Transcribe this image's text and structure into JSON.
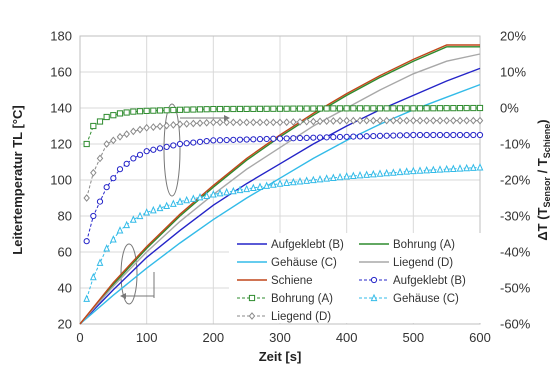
{
  "chart_data": {
    "type": "line",
    "xlabel": "Zeit [s]",
    "ylabel_left": "Leitertemperatur TL [°C]",
    "ylabel_right": {
      "prefix": "ΔT (T",
      "sub1": "Sensor",
      "mid": " / T",
      "sub2": "Schiene",
      "suffix": ")"
    },
    "xlim": [
      0,
      600
    ],
    "ylim_left": [
      20,
      180
    ],
    "ylim_right": [
      -60,
      20
    ],
    "x_ticks": [
      "0",
      "100",
      "200",
      "300",
      "400",
      "500",
      "600"
    ],
    "y_left_ticks": [
      "20",
      "40",
      "60",
      "80",
      "100",
      "120",
      "140",
      "160",
      "180"
    ],
    "y_right_ticks": [
      "-60%",
      "-50%",
      "-40%",
      "-30%",
      "-20%",
      "-10%",
      "0%",
      "10%",
      "20%"
    ],
    "grid": true,
    "legend_position": "bottom-right",
    "temperature_series": [
      {
        "name": "Aufgeklebt (B)",
        "color": "#2424c8",
        "axis": "left",
        "style": "solid",
        "x": [
          0,
          50,
          100,
          150,
          200,
          250,
          300,
          350,
          400,
          450,
          500,
          550,
          600
        ],
        "y": [
          20,
          39,
          57,
          72,
          86,
          98,
          109,
          120,
          130,
          139,
          147,
          155,
          162
        ]
      },
      {
        "name": "Bohrung (A)",
        "color": "#2e8b2e",
        "axis": "left",
        "style": "solid",
        "x": [
          0,
          50,
          100,
          150,
          200,
          250,
          300,
          350,
          400,
          450,
          500,
          550,
          600
        ],
        "y": [
          20,
          42,
          62,
          80,
          96,
          111,
          124,
          136,
          147,
          157,
          166,
          174,
          174
        ]
      },
      {
        "name": "Gehäuse (C)",
        "color": "#33bbe8",
        "axis": "left",
        "style": "solid",
        "x": [
          0,
          50,
          100,
          150,
          200,
          250,
          300,
          350,
          400,
          450,
          500,
          550,
          600
        ],
        "y": [
          20,
          36,
          51,
          65,
          78,
          90,
          101,
          112,
          122,
          131,
          139,
          146,
          153
        ]
      },
      {
        "name": "Liegend (D)",
        "color": "#a8a8a8",
        "axis": "left",
        "style": "solid",
        "x": [
          0,
          50,
          100,
          150,
          200,
          250,
          300,
          350,
          400,
          450,
          500,
          550,
          600
        ],
        "y": [
          20,
          41,
          60,
          77,
          92,
          106,
          118,
          130,
          140,
          150,
          159,
          166,
          170
        ]
      },
      {
        "name": "Schiene",
        "color": "#c0471a",
        "axis": "left",
        "style": "solid",
        "x": [
          0,
          50,
          100,
          150,
          200,
          250,
          300,
          350,
          400,
          450,
          500,
          550,
          600
        ],
        "y": [
          20,
          43,
          63,
          81,
          97,
          112,
          125,
          137,
          148,
          158,
          167,
          175,
          175
        ]
      }
    ],
    "deviation_series": [
      {
        "name": "Bohrung (A)",
        "color": "#2e8b2e",
        "axis": "right",
        "marker": "square",
        "style": "dashed",
        "x": [
          10,
          20,
          40,
          60,
          80,
          100,
          150,
          200,
          300,
          400,
          500,
          600
        ],
        "y": [
          -10,
          -5,
          -2.5,
          -1.5,
          -1,
          -0.8,
          -0.5,
          -0.3,
          -0.2,
          -0.1,
          -0.1,
          0
        ]
      },
      {
        "name": "Aufgeklebt (B)",
        "color": "#2424c8",
        "axis": "right",
        "marker": "circle",
        "style": "dashed",
        "x": [
          10,
          20,
          40,
          60,
          80,
          100,
          150,
          200,
          300,
          400,
          500,
          600
        ],
        "y": [
          -37,
          -30,
          -22,
          -17,
          -14,
          -12,
          -10,
          -9,
          -8.5,
          -8,
          -7.5,
          -7.5
        ]
      },
      {
        "name": "Gehäuse (C)",
        "color": "#33bbe8",
        "axis": "right",
        "marker": "triangle",
        "style": "dashed",
        "x": [
          10,
          20,
          40,
          60,
          80,
          100,
          150,
          200,
          250,
          300,
          400,
          500,
          600
        ],
        "y": [
          -53,
          -47,
          -39,
          -34,
          -31,
          -29,
          -26,
          -24,
          -22.5,
          -21,
          -19,
          -17.5,
          -16.5
        ]
      },
      {
        "name": "Liegend (D)",
        "color": "#8a8a8a",
        "axis": "right",
        "marker": "diamond",
        "style": "dashed",
        "x": [
          10,
          20,
          40,
          60,
          80,
          100,
          150,
          200,
          300,
          400,
          500,
          600
        ],
        "y": [
          -25,
          -18,
          -10,
          -8,
          -6.5,
          -5.5,
          -4.5,
          -4,
          -4,
          -3.5,
          -3.5,
          -3.5
        ]
      }
    ],
    "legend": [
      {
        "label": "Aufgeklebt (B)",
        "color": "#2424c8",
        "kind": "line"
      },
      {
        "label": "Bohrung (A)",
        "color": "#2e8b2e",
        "kind": "line"
      },
      {
        "label": "Gehäuse (C)",
        "color": "#33bbe8",
        "kind": "line"
      },
      {
        "label": "Liegend (D)",
        "color": "#a8a8a8",
        "kind": "line"
      },
      {
        "label": "Schiene",
        "color": "#c0471a",
        "kind": "line"
      },
      {
        "label": "Aufgeklebt (B)",
        "color": "#2424c8",
        "kind": "marker",
        "marker": "circle"
      },
      {
        "label": "Bohrung (A)",
        "color": "#2e8b2e",
        "kind": "marker",
        "marker": "square"
      },
      {
        "label": "Gehäuse (C)",
        "color": "#33bbe8",
        "kind": "marker",
        "marker": "triangle"
      },
      {
        "label": "Liegend (D)",
        "color": "#8a8a8a",
        "kind": "marker",
        "marker": "diamond"
      }
    ]
  }
}
